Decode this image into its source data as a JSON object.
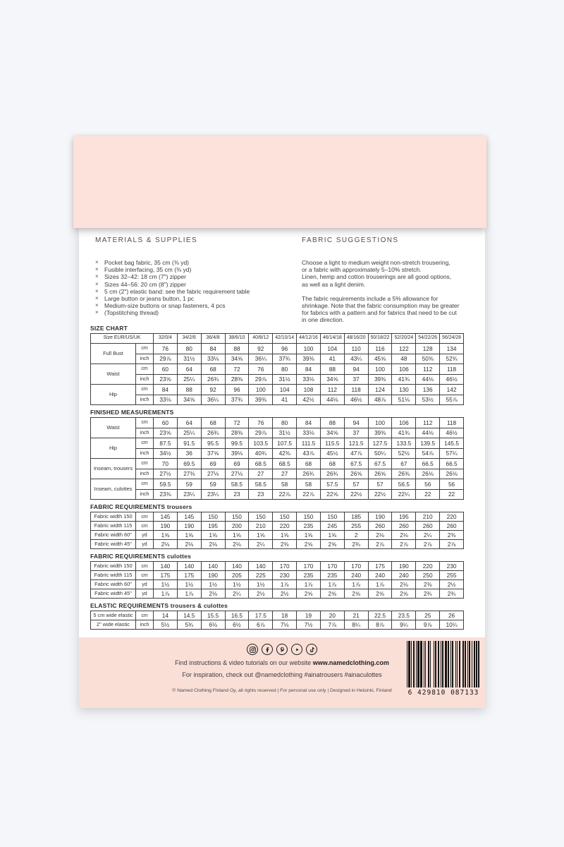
{
  "page": {
    "colors": {
      "pink_band": "#fce2db",
      "footer_pink": "#fadfd7",
      "paper": "#ffffff",
      "backdrop": "#f4f6f9",
      "ink": "#2e2e2e"
    }
  },
  "materials": {
    "heading": "MATERIALS & SUPPLIES",
    "bullet": "×",
    "items": [
      "Pocket bag fabric, 35 cm (⅜ yd)",
      "Fusible interfacing, 35 cm (⅜ yd)",
      "Sizes 32–42: 18 cm (7\") zipper",
      "Sizes 44–56: 20 cm (8\") zipper",
      "5 cm (2\") elastic band: see the fabric requirement table",
      "Large button or jeans button, 1 pc",
      "Medium-size buttons or snap fasteners, 4 pcs",
      "(Topstitching thread)"
    ]
  },
  "fabric_suggestions": {
    "heading": "FABRIC SUGGESTIONS",
    "paragraphs": [
      [
        "Choose a light to medium weight non-stretch trousering,",
        "or a fabric with approximately 5–10% stretch.",
        "Linen, hemp and cotton trouserings are all good options,",
        "as well as a light denim."
      ],
      [
        "The fabric requirements include a 5% allowance for",
        "shrinkage. Note that the fabric consumption may be greater",
        "for fabrics with a pattern and for fabrics that need to be cut",
        "in one direction."
      ]
    ]
  },
  "size_header_label": "Size EUR/US/UK",
  "size_columns": [
    "32/0/4",
    "34/2/6",
    "36/4/8",
    "38/6/10",
    "40/8/12",
    "42/10/14",
    "44/12/16",
    "46/14/18",
    "48/16/20",
    "50/18/22",
    "52/20/24",
    "54/22/26",
    "56/24/28"
  ],
  "tables": [
    {
      "title": "SIZE CHART",
      "suffix": "",
      "type": "grouped",
      "has_header": true,
      "groups": [
        {
          "label": "Full Bust",
          "rows": [
            {
              "unit": "cm",
              "values": [
                "76",
                "80",
                "84",
                "88",
                "92",
                "96",
                "100",
                "104",
                "110",
                "116",
                "122",
                "128",
                "134"
              ]
            },
            {
              "unit": "inch",
              "values": [
                "29⅞",
                "31½",
                "33⅛",
                "34⅝",
                "36¼",
                "37¾",
                "39⅜",
                "41",
                "43¼",
                "45⅝",
                "48",
                "50⅜",
                "52¾"
              ]
            }
          ]
        },
        {
          "label": "Waist",
          "rows": [
            {
              "unit": "cm",
              "values": [
                "60",
                "64",
                "68",
                "72",
                "76",
                "80",
                "84",
                "88",
                "94",
                "100",
                "106",
                "112",
                "118"
              ]
            },
            {
              "unit": "inch",
              "values": [
                "23⅝",
                "25¼",
                "26¾",
                "28⅜",
                "29⅞",
                "31½",
                "33⅛",
                "34⅝",
                "37",
                "39⅜",
                "41¾",
                "44⅛",
                "46½"
              ]
            }
          ]
        },
        {
          "label": "Hip",
          "rows": [
            {
              "unit": "cm",
              "values": [
                "84",
                "88",
                "92",
                "96",
                "100",
                "104",
                "108",
                "112",
                "118",
                "124",
                "130",
                "136",
                "142"
              ]
            },
            {
              "unit": "inch",
              "values": [
                "33⅛",
                "34⅝",
                "36¼",
                "37¾",
                "39⅜",
                "41",
                "42½",
                "44⅛",
                "46½",
                "48⅞",
                "51⅛",
                "53½",
                "55⅞"
              ]
            }
          ]
        }
      ]
    },
    {
      "title": "FINISHED MEASUREMENTS",
      "suffix": "",
      "type": "grouped",
      "has_header": false,
      "groups": [
        {
          "label": "Waist",
          "rows": [
            {
              "unit": "cm",
              "values": [
                "60",
                "64",
                "68",
                "72",
                "76",
                "80",
                "84",
                "88",
                "94",
                "100",
                "106",
                "112",
                "118"
              ]
            },
            {
              "unit": "inch",
              "values": [
                "23⅝",
                "25¼",
                "26¾",
                "28⅜",
                "29⅞",
                "31½",
                "33⅛",
                "34⅝",
                "37",
                "39⅜",
                "41¾",
                "44⅛",
                "46½"
              ]
            }
          ]
        },
        {
          "label": "Hip",
          "rows": [
            {
              "unit": "cm",
              "values": [
                "87.5",
                "91.5",
                "95.5",
                "99.5",
                "103.5",
                "107.5",
                "111.5",
                "115.5",
                "121.5",
                "127.5",
                "133.5",
                "139.5",
                "145.5"
              ]
            },
            {
              "unit": "inch",
              "values": [
                "34½",
                "36",
                "37⅝",
                "39⅛",
                "40¾",
                "42⅜",
                "43⅞",
                "45½",
                "47⅞",
                "50¼",
                "52½",
                "54⅞",
                "57¼"
              ]
            }
          ]
        },
        {
          "label": "Inseam, trousers",
          "rows": [
            {
              "unit": "cm",
              "values": [
                "70",
                "69.5",
                "69",
                "69",
                "68.5",
                "68.5",
                "68",
                "68",
                "67.5",
                "67.5",
                "67",
                "66.5",
                "66.5"
              ]
            },
            {
              "unit": "inch",
              "values": [
                "27½",
                "27⅜",
                "27⅛",
                "27⅛",
                "27",
                "27",
                "26¾",
                "26¾",
                "26⅝",
                "26⅝",
                "26⅜",
                "26⅛",
                "26⅛"
              ]
            }
          ]
        },
        {
          "label": "Inseam, culottes",
          "rows": [
            {
              "unit": "cm",
              "values": [
                "59.5",
                "59",
                "59",
                "58.5",
                "58.5",
                "58",
                "58",
                "57.5",
                "57",
                "57",
                "56.5",
                "56",
                "56"
              ]
            },
            {
              "unit": "inch",
              "values": [
                "23⅜",
                "23¼",
                "23¼",
                "23",
                "23",
                "22⅞",
                "22⅞",
                "22⅝",
                "22½",
                "22½",
                "22¼",
                "22",
                "22"
              ]
            }
          ]
        }
      ]
    },
    {
      "title": "FABRIC REQUIREMENTS",
      "suffix": "trousers",
      "type": "flat",
      "has_header": false,
      "rows": [
        {
          "label": "Fabric width 150",
          "unit": "cm",
          "values": [
            "145",
            "145",
            "150",
            "150",
            "150",
            "150",
            "150",
            "150",
            "185",
            "190",
            "195",
            "210",
            "220"
          ]
        },
        {
          "label": "Fabric width 115",
          "unit": "cm",
          "values": [
            "190",
            "190",
            "195",
            "200",
            "210",
            "220",
            "235",
            "245",
            "255",
            "260",
            "260",
            "260",
            "260"
          ]
        },
        {
          "label": "Fabric width 60\"",
          "unit": "yd",
          "values": [
            "1⅝",
            "1⅝",
            "1⅝",
            "1⅝",
            "1⅝",
            "1⅝",
            "1⅝",
            "1⅝",
            "2",
            "2⅛",
            "2⅛",
            "2¼",
            "2⅜"
          ]
        },
        {
          "label": "Fabric width 45\"",
          "unit": "yd",
          "values": [
            "2⅛",
            "2⅛",
            "2⅛",
            "2⅛",
            "2¼",
            "2⅜",
            "2⅝",
            "2⅝",
            "2¾",
            "2⅞",
            "2⅞",
            "2⅞",
            "2⅞"
          ]
        }
      ]
    },
    {
      "title": "FABRIC REQUIREMENTS",
      "suffix": "culottes",
      "type": "flat",
      "has_header": false,
      "rows": [
        {
          "label": "Fabric width 150",
          "unit": "cm",
          "values": [
            "140",
            "140",
            "140",
            "140",
            "140",
            "170",
            "170",
            "170",
            "170",
            "175",
            "190",
            "220",
            "230"
          ]
        },
        {
          "label": "Fabric width 115",
          "unit": "cm",
          "values": [
            "175",
            "175",
            "190",
            "205",
            "225",
            "230",
            "235",
            "235",
            "240",
            "240",
            "240",
            "250",
            "255"
          ]
        },
        {
          "label": "Fabric width 60\"",
          "unit": "yd",
          "values": [
            "1½",
            "1½",
            "1½",
            "1½",
            "1½",
            "1⅞",
            "1⅞",
            "1⅞",
            "1⅞",
            "1⅞",
            "2⅛",
            "2⅜",
            "2½"
          ]
        },
        {
          "label": "Fabric width 45\"",
          "unit": "yd",
          "values": [
            "1⅞",
            "1⅞",
            "2⅛",
            "2¼",
            "2½",
            "2½",
            "2⅝",
            "2⅝",
            "2⅝",
            "2⅝",
            "2⅝",
            "2¾",
            "2¾"
          ]
        }
      ]
    },
    {
      "title": "ELASTIC REQUIREMENTS",
      "suffix": "trousers & culottes",
      "type": "flat",
      "has_header": false,
      "rows": [
        {
          "label": "5 cm wide elastic",
          "unit": "cm",
          "values": [
            "14",
            "14.5",
            "15.5",
            "16.5",
            "17.5",
            "18",
            "19",
            "20",
            "21",
            "22.5",
            "23.5",
            "25",
            "26"
          ]
        },
        {
          "label": "2\" wide elastic",
          "unit": "inch",
          "values": [
            "5½",
            "5¾",
            "6⅛",
            "6½",
            "6⅞",
            "7⅛",
            "7½",
            "7⅞",
            "8¼",
            "8⅞",
            "9¼",
            "9⅞",
            "10¼"
          ]
        }
      ]
    }
  ],
  "footer": {
    "social_icons": [
      "instagram-icon",
      "facebook-icon",
      "pinterest-icon",
      "youtube-icon",
      "tiktok-icon"
    ],
    "line1_prefix": "Find instructions & video tutorials on our website ",
    "line1_bold": "www.namedclothing.com",
    "line2": "For inspiration, check out @namedclothing #ainatrousers #ainaculottes",
    "copyright": "© Named Clothing Finland Oy, all rights reserved | For personal use only | Designed in Helsinki, Finland",
    "barcode": "6 429810 087133"
  }
}
